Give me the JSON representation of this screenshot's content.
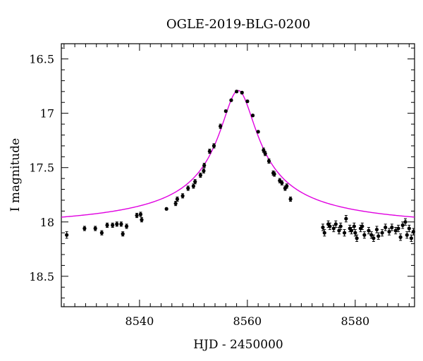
{
  "chart_data": {
    "type": "scatter",
    "title": "OGLE-2019-BLG-0200",
    "xlabel": "HJD - 2450000",
    "ylabel": "I magnitude",
    "xlim": [
      8525.5,
      8591
    ],
    "ylim": [
      18.78,
      16.36
    ],
    "y_inverted": true,
    "x_ticks": [
      8540,
      8560,
      8580
    ],
    "y_ticks": [
      16.5,
      17,
      17.5,
      18,
      18.5
    ],
    "x_tick_labels": [
      "8540",
      "8560",
      "8580"
    ],
    "y_tick_labels": [
      "16.5",
      "17",
      "17.5",
      "18",
      "18.5"
    ],
    "grid": false,
    "model_color": "#e000e0",
    "model": {
      "name": "",
      "t0": 8558.3,
      "peak_mag": 16.79,
      "baseline_mag": 18.09,
      "width_days": 3.4,
      "x_range": [
        8525.5,
        8591
      ]
    },
    "points": [
      [
        8526.5,
        18.12,
        0.03
      ],
      [
        8529.8,
        18.06,
        0.02
      ],
      [
        8531.8,
        18.06,
        0.02
      ],
      [
        8533.0,
        18.1,
        0.02
      ],
      [
        8534.0,
        18.03,
        0.02
      ],
      [
        8535.0,
        18.03,
        0.02
      ],
      [
        8535.8,
        18.02,
        0.02
      ],
      [
        8536.6,
        18.02,
        0.02
      ],
      [
        8536.9,
        18.11,
        0.02
      ],
      [
        8537.6,
        18.04,
        0.02
      ],
      [
        8539.5,
        17.94,
        0.02
      ],
      [
        8540.2,
        17.93,
        0.02
      ],
      [
        8540.4,
        17.98,
        0.02
      ],
      [
        8545.0,
        17.88,
        0.01
      ],
      [
        8546.7,
        17.83,
        0.02
      ],
      [
        8547.0,
        17.79,
        0.02
      ],
      [
        8548.0,
        17.76,
        0.02
      ],
      [
        8549.0,
        17.69,
        0.02
      ],
      [
        8550.0,
        17.67,
        0.02
      ],
      [
        8550.3,
        17.63,
        0.02
      ],
      [
        8551.3,
        17.57,
        0.02
      ],
      [
        8551.9,
        17.53,
        0.02
      ],
      [
        8552.0,
        17.48,
        0.02
      ],
      [
        8553.0,
        17.35,
        0.02
      ],
      [
        8553.8,
        17.3,
        0.02
      ],
      [
        8555.0,
        17.12,
        0.02
      ],
      [
        8556.0,
        16.98,
        0.01
      ],
      [
        8557.0,
        16.88,
        0.01
      ],
      [
        8558.0,
        16.8,
        0.01
      ],
      [
        8559.0,
        16.81,
        0.01
      ],
      [
        8560.0,
        16.89,
        0.01
      ],
      [
        8561.0,
        17.02,
        0.01
      ],
      [
        8562.0,
        17.17,
        0.01
      ],
      [
        8563.0,
        17.34,
        0.02
      ],
      [
        8563.3,
        17.37,
        0.02
      ],
      [
        8564.0,
        17.44,
        0.02
      ],
      [
        8564.8,
        17.55,
        0.02
      ],
      [
        8565.0,
        17.56,
        0.02
      ],
      [
        8566.0,
        17.62,
        0.02
      ],
      [
        8566.4,
        17.64,
        0.02
      ],
      [
        8567.0,
        17.69,
        0.02
      ],
      [
        8567.3,
        17.67,
        0.02
      ],
      [
        8568.0,
        17.79,
        0.02
      ],
      [
        8574.0,
        18.05,
        0.03
      ],
      [
        8574.3,
        18.1,
        0.03
      ],
      [
        8575.0,
        18.02,
        0.03
      ],
      [
        8575.3,
        18.04,
        0.03
      ],
      [
        8576.0,
        18.06,
        0.03
      ],
      [
        8576.4,
        18.02,
        0.03
      ],
      [
        8577.0,
        18.08,
        0.03
      ],
      [
        8577.3,
        18.04,
        0.03
      ],
      [
        8578.0,
        18.1,
        0.03
      ],
      [
        8578.3,
        17.97,
        0.03
      ],
      [
        8579.0,
        18.06,
        0.03
      ],
      [
        8579.3,
        18.08,
        0.03
      ],
      [
        8579.8,
        18.04,
        0.03
      ],
      [
        8580.0,
        18.1,
        0.03
      ],
      [
        8580.3,
        18.15,
        0.03
      ],
      [
        8581.0,
        18.06,
        0.03
      ],
      [
        8581.3,
        18.04,
        0.03
      ],
      [
        8581.7,
        18.12,
        0.03
      ],
      [
        8582.5,
        18.08,
        0.03
      ],
      [
        8583.0,
        18.12,
        0.03
      ],
      [
        8583.4,
        18.15,
        0.03
      ],
      [
        8584.0,
        18.07,
        0.03
      ],
      [
        8584.3,
        18.13,
        0.03
      ],
      [
        8585.0,
        18.1,
        0.03
      ],
      [
        8585.6,
        18.05,
        0.03
      ],
      [
        8586.3,
        18.09,
        0.03
      ],
      [
        8586.8,
        18.05,
        0.03
      ],
      [
        8587.5,
        18.08,
        0.03
      ],
      [
        8588.0,
        18.06,
        0.03
      ],
      [
        8588.4,
        18.14,
        0.03
      ],
      [
        8588.8,
        18.03,
        0.03
      ],
      [
        8589.3,
        18.0,
        0.03
      ],
      [
        8589.6,
        18.12,
        0.03
      ],
      [
        8590.0,
        18.06,
        0.03
      ],
      [
        8590.4,
        18.15,
        0.03
      ],
      [
        8590.8,
        18.09,
        0.03
      ]
    ]
  }
}
